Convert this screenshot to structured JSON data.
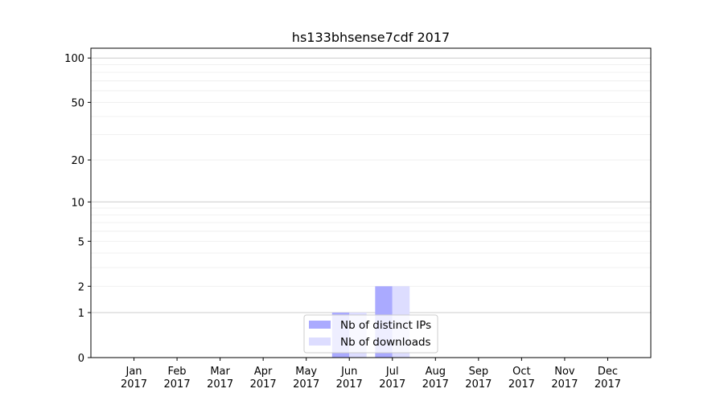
{
  "chart_data": {
    "type": "bar",
    "title": "hs133bhsense7cdf 2017",
    "xlabel": "",
    "ylabel": "",
    "categories": [
      "Jan\n2017",
      "Feb\n2017",
      "Mar\n2017",
      "Apr\n2017",
      "May\n2017",
      "Jun\n2017",
      "Jul\n2017",
      "Aug\n2017",
      "Sep\n2017",
      "Oct\n2017",
      "Nov\n2017",
      "Dec\n2017"
    ],
    "series": [
      {
        "name": "Nb of distinct IPs",
        "color": "#aaaaff",
        "values": [
          0,
          0,
          0,
          0,
          0,
          1,
          2,
          0,
          0,
          0,
          0,
          0
        ]
      },
      {
        "name": "Nb of downloads",
        "color": "#ddddff",
        "values": [
          0,
          0,
          0,
          0,
          0,
          1,
          2,
          0,
          0,
          0,
          0,
          0
        ]
      }
    ],
    "yscale": "log(1+y)",
    "yticks": [
      0,
      1,
      2,
      5,
      10,
      20,
      50,
      100
    ],
    "ylim": [
      0,
      116
    ],
    "grid": true,
    "legend": "bottom-center"
  }
}
